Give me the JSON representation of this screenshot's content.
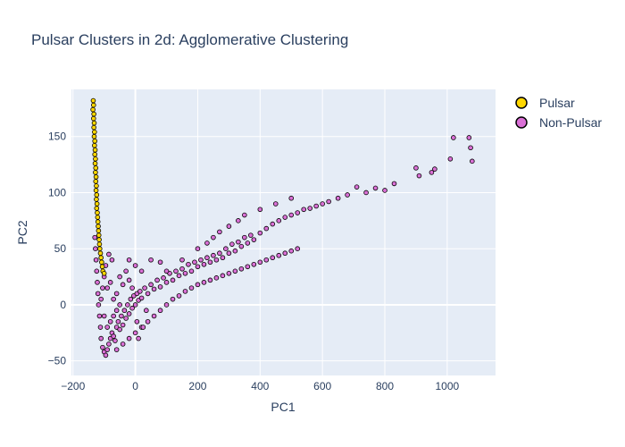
{
  "chart_data": {
    "type": "scatter",
    "title": "Pulsar Clusters in 2d: Agglomerative Clustering",
    "xlabel": "PC1",
    "ylabel": "PC2",
    "xlim": [
      -205,
      1155
    ],
    "ylim": [
      -63,
      192
    ],
    "xticks": [
      -200,
      0,
      200,
      400,
      600,
      800,
      1000
    ],
    "yticks": [
      -50,
      0,
      50,
      100,
      150
    ],
    "xtick_labels": [
      "−200",
      "0",
      "200",
      "400",
      "600",
      "800",
      "1000"
    ],
    "ytick_labels": [
      "−50",
      "0",
      "50",
      "100",
      "150"
    ],
    "grid": true,
    "legend_position": "top-right",
    "series": [
      {
        "name": "Pulsar",
        "color": "#ffd700",
        "points": [
          [
            -135,
            182
          ],
          [
            -134,
            178
          ],
          [
            -136,
            174
          ],
          [
            -133,
            170
          ],
          [
            -134,
            166
          ],
          [
            -132,
            162
          ],
          [
            -133,
            158
          ],
          [
            -131,
            154
          ],
          [
            -132,
            150
          ],
          [
            -130,
            146
          ],
          [
            -131,
            142
          ],
          [
            -129,
            138
          ],
          [
            -130,
            134
          ],
          [
            -128,
            130
          ],
          [
            -129,
            126
          ],
          [
            -127,
            122
          ],
          [
            -128,
            118
          ],
          [
            -126,
            114
          ],
          [
            -127,
            110
          ],
          [
            -125,
            106
          ],
          [
            -126,
            102
          ],
          [
            -124,
            98
          ],
          [
            -125,
            94
          ],
          [
            -123,
            90
          ],
          [
            -124,
            86
          ],
          [
            -122,
            82
          ],
          [
            -121,
            78
          ],
          [
            -120,
            74
          ],
          [
            -119,
            70
          ],
          [
            -118,
            66
          ],
          [
            -117,
            62
          ],
          [
            -116,
            58
          ],
          [
            -115,
            54
          ],
          [
            -114,
            50
          ],
          [
            -112,
            46
          ],
          [
            -110,
            42
          ],
          [
            -108,
            38
          ],
          [
            -106,
            34
          ],
          [
            -104,
            30
          ],
          [
            -100,
            28
          ]
        ]
      },
      {
        "name": "Non-Pulsar",
        "color": "#da70d6",
        "points": [
          [
            -130,
            60
          ],
          [
            -128,
            50
          ],
          [
            -126,
            40
          ],
          [
            -124,
            30
          ],
          [
            -122,
            20
          ],
          [
            -120,
            10
          ],
          [
            -118,
            0
          ],
          [
            -115,
            -10
          ],
          [
            -112,
            -20
          ],
          [
            -110,
            -30
          ],
          [
            -105,
            -38
          ],
          [
            -100,
            -42
          ],
          [
            -95,
            -45
          ],
          [
            -90,
            -40
          ],
          [
            -85,
            -35
          ],
          [
            -80,
            -30
          ],
          [
            -75,
            -25
          ],
          [
            -70,
            -28
          ],
          [
            -65,
            -32
          ],
          [
            -60,
            -20
          ],
          [
            -55,
            -15
          ],
          [
            -50,
            -22
          ],
          [
            -45,
            -10
          ],
          [
            -40,
            -18
          ],
          [
            -35,
            -5
          ],
          [
            -30,
            -12
          ],
          [
            -25,
            0
          ],
          [
            -20,
            -8
          ],
          [
            -15,
            5
          ],
          [
            -10,
            -3
          ],
          [
            -5,
            8
          ],
          [
            0,
            0
          ],
          [
            5,
            10
          ],
          [
            10,
            4
          ],
          [
            15,
            12
          ],
          [
            20,
            6
          ],
          [
            30,
            15
          ],
          [
            40,
            10
          ],
          [
            50,
            18
          ],
          [
            60,
            14
          ],
          [
            70,
            22
          ],
          [
            80,
            16
          ],
          [
            90,
            24
          ],
          [
            100,
            20
          ],
          [
            110,
            28
          ],
          [
            120,
            22
          ],
          [
            130,
            30
          ],
          [
            140,
            26
          ],
          [
            150,
            32
          ],
          [
            160,
            28
          ],
          [
            170,
            36
          ],
          [
            180,
            30
          ],
          [
            190,
            38
          ],
          [
            200,
            34
          ],
          [
            210,
            40
          ],
          [
            220,
            36
          ],
          [
            230,
            42
          ],
          [
            240,
            38
          ],
          [
            250,
            44
          ],
          [
            260,
            40
          ],
          [
            270,
            46
          ],
          [
            280,
            42
          ],
          [
            290,
            50
          ],
          [
            300,
            46
          ],
          [
            310,
            54
          ],
          [
            320,
            48
          ],
          [
            330,
            56
          ],
          [
            340,
            52
          ],
          [
            350,
            60
          ],
          [
            360,
            55
          ],
          [
            370,
            62
          ],
          [
            380,
            58
          ],
          [
            400,
            64
          ],
          [
            420,
            68
          ],
          [
            440,
            72
          ],
          [
            460,
            75
          ],
          [
            480,
            78
          ],
          [
            500,
            80
          ],
          [
            520,
            82
          ],
          [
            540,
            85
          ],
          [
            560,
            86
          ],
          [
            580,
            88
          ],
          [
            600,
            90
          ],
          [
            620,
            92
          ],
          [
            650,
            95
          ],
          [
            680,
            98
          ],
          [
            710,
            105
          ],
          [
            740,
            100
          ],
          [
            770,
            104
          ],
          [
            800,
            102
          ],
          [
            830,
            108
          ],
          [
            900,
            122
          ],
          [
            910,
            115
          ],
          [
            950,
            118
          ],
          [
            960,
            121
          ],
          [
            1010,
            130
          ],
          [
            1020,
            149
          ],
          [
            1070,
            149
          ],
          [
            1075,
            140
          ],
          [
            1080,
            128
          ],
          [
            -60,
            -40
          ],
          [
            -40,
            -35
          ],
          [
            -20,
            -30
          ],
          [
            0,
            -25
          ],
          [
            20,
            -20
          ],
          [
            40,
            -15
          ],
          [
            60,
            -10
          ],
          [
            80,
            -5
          ],
          [
            100,
            0
          ],
          [
            120,
            5
          ],
          [
            140,
            8
          ],
          [
            160,
            12
          ],
          [
            180,
            15
          ],
          [
            200,
            18
          ],
          [
            220,
            20
          ],
          [
            240,
            22
          ],
          [
            260,
            24
          ],
          [
            280,
            26
          ],
          [
            300,
            28
          ],
          [
            320,
            30
          ],
          [
            340,
            32
          ],
          [
            360,
            34
          ],
          [
            380,
            36
          ],
          [
            400,
            38
          ],
          [
            420,
            40
          ],
          [
            440,
            42
          ],
          [
            460,
            44
          ],
          [
            480,
            46
          ],
          [
            500,
            48
          ],
          [
            520,
            50
          ],
          [
            -90,
            15
          ],
          [
            -80,
            20
          ],
          [
            -70,
            5
          ],
          [
            -60,
            10
          ],
          [
            -50,
            25
          ],
          [
            -40,
            18
          ],
          [
            -30,
            30
          ],
          [
            -20,
            22
          ],
          [
            0,
            35
          ],
          [
            20,
            30
          ],
          [
            50,
            40
          ],
          [
            80,
            38
          ],
          [
            -100,
            -10
          ],
          [
            -90,
            -20
          ],
          [
            -80,
            -15
          ],
          [
            -70,
            -10
          ],
          [
            -60,
            -5
          ],
          [
            -50,
            0
          ],
          [
            250,
            60
          ],
          [
            300,
            70
          ],
          [
            350,
            80
          ],
          [
            400,
            85
          ],
          [
            450,
            90
          ],
          [
            500,
            95
          ],
          [
            -20,
            40
          ],
          [
            -10,
            15
          ],
          [
            5,
            -15
          ],
          [
            10,
            -30
          ],
          [
            25,
            -20
          ],
          [
            35,
            -5
          ],
          [
            100,
            30
          ],
          [
            150,
            40
          ],
          [
            200,
            50
          ],
          [
            230,
            55
          ],
          [
            270,
            65
          ],
          [
            330,
            75
          ],
          [
            -110,
            5
          ],
          [
            -105,
            15
          ],
          [
            -100,
            25
          ],
          [
            -95,
            35
          ],
          [
            -85,
            45
          ],
          [
            -75,
            40
          ]
        ]
      }
    ]
  }
}
